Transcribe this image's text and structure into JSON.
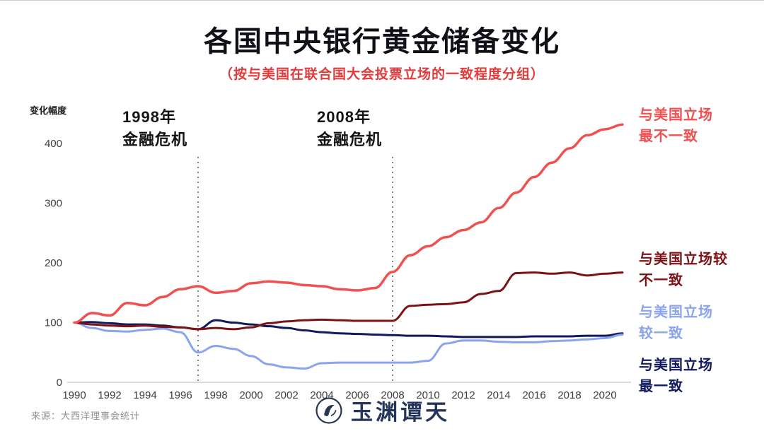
{
  "axis": {
    "y_label": "变化幅度"
  },
  "footer": {
    "source": "来源：大西洋理事会统计",
    "logo_text": "玉渊谭天"
  },
  "chart_data": {
    "type": "line",
    "title": "各国中央银行黄金储备变化",
    "subtitle": "（按与美国在联合国大会投票立场的一致程度分组）",
    "subtitle_color": "#e23b3b",
    "ylabel": "变化幅度",
    "xlabel": "",
    "grid": false,
    "legend_position": "right-outside",
    "x_range": [
      1990,
      2021
    ],
    "ylim": [
      0,
      450
    ],
    "x_ticks": [
      1990,
      1992,
      1994,
      1996,
      1998,
      2000,
      2002,
      2004,
      2006,
      2008,
      2010,
      2012,
      2014,
      2016,
      2018,
      2020
    ],
    "y_ticks": [
      0,
      100,
      200,
      300,
      400
    ],
    "events": [
      {
        "line_year": 1997,
        "lines": [
          "1998年",
          "金融危机"
        ]
      },
      {
        "line_year": 2008,
        "lines": [
          "2008年",
          "金融危机"
        ]
      }
    ],
    "x": [
      1990,
      1991,
      1992,
      1993,
      1994,
      1995,
      1996,
      1997,
      1998,
      1999,
      2000,
      2001,
      2002,
      2003,
      2004,
      2005,
      2006,
      2007,
      2008,
      2009,
      2010,
      2011,
      2012,
      2013,
      2014,
      2015,
      2016,
      2017,
      2018,
      2019,
      2020,
      2021
    ],
    "series": [
      {
        "name": "与美国立场最不一致",
        "label_lines": [
          "与美国立场",
          "最不一致"
        ],
        "color": "#f05050",
        "width": 3.5,
        "values": [
          100,
          116,
          112,
          133,
          129,
          143,
          156,
          161,
          150,
          153,
          166,
          169,
          167,
          163,
          161,
          156,
          154,
          158,
          185,
          213,
          228,
          243,
          255,
          268,
          292,
          318,
          344,
          368,
          392,
          414,
          424,
          432
        ]
      },
      {
        "name": "与美国立场较不一致",
        "label_lines": [
          "与美国立场较",
          "不一致"
        ],
        "color": "#7b1216",
        "width": 3,
        "values": [
          100,
          97,
          95,
          94,
          95,
          93,
          92,
          89,
          91,
          89,
          92,
          99,
          102,
          104,
          105,
          104,
          103,
          103,
          103,
          128,
          130,
          131,
          134,
          148,
          153,
          183,
          184,
          182,
          184,
          179,
          182,
          184
        ]
      },
      {
        "name": "与美国立场较一致",
        "label_lines": [
          "与美国立场",
          "较一致"
        ],
        "color": "#8aa4ee",
        "width": 3,
        "values": [
          100,
          91,
          86,
          85,
          88,
          90,
          84,
          50,
          61,
          56,
          44,
          30,
          25,
          23,
          32,
          33,
          33,
          33,
          33,
          33,
          36,
          65,
          70,
          70,
          68,
          67,
          67,
          69,
          70,
          72,
          74,
          80
        ]
      },
      {
        "name": "与美国立场最一致",
        "label_lines": [
          "与美国立场",
          "最一致"
        ],
        "color": "#101a5c",
        "width": 3,
        "values": [
          100,
          101,
          99,
          97,
          97,
          95,
          92,
          89,
          104,
          100,
          97,
          94,
          91,
          87,
          84,
          82,
          81,
          80,
          79,
          78,
          78,
          77,
          76,
          76,
          76,
          76,
          77,
          77,
          77,
          78,
          78,
          82
        ]
      }
    ]
  }
}
